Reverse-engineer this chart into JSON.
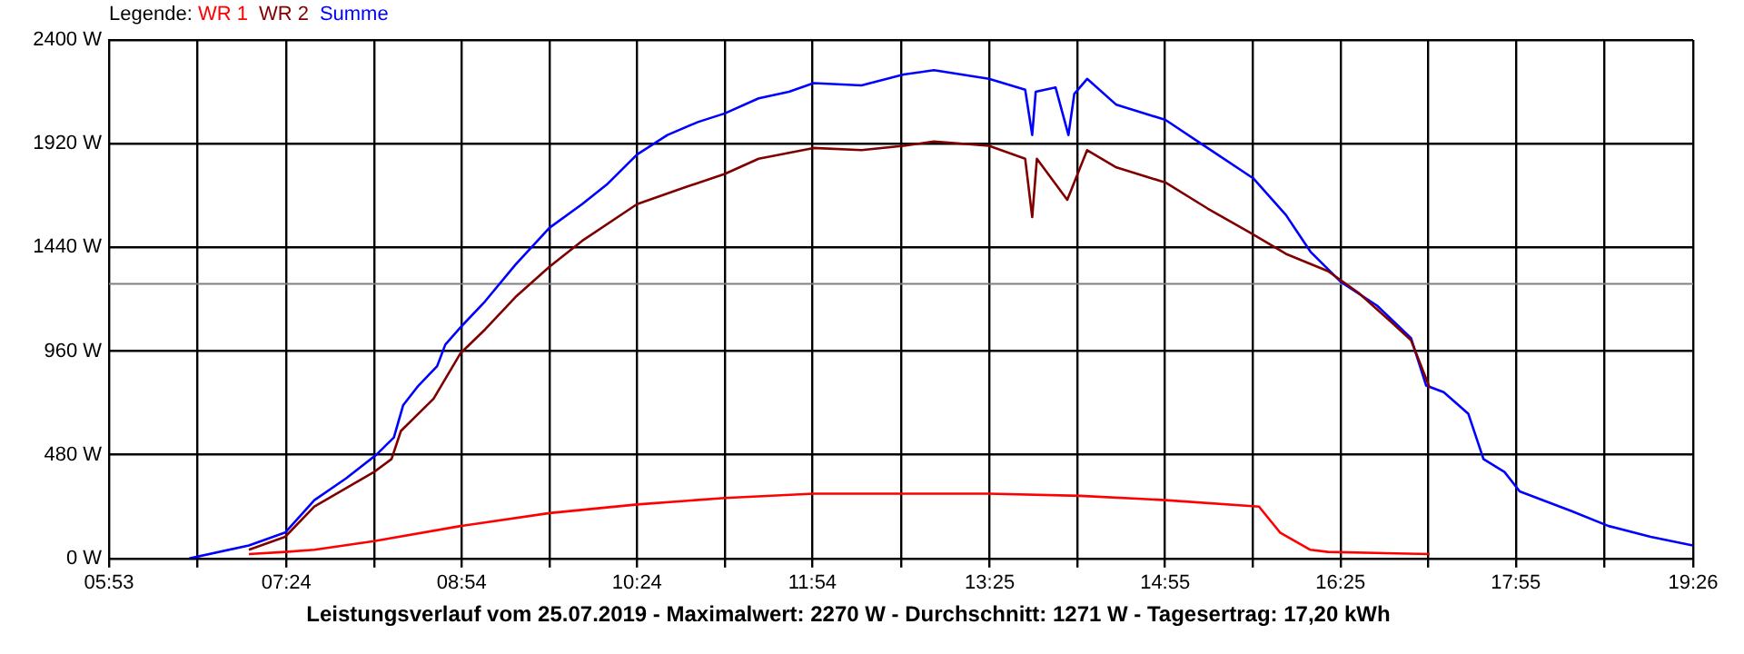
{
  "chart_data": {
    "type": "line",
    "title": "Leistungsverlauf vom 25.07.2019 - Maximalwert: 2270 W - Durchschnitt: 1271 W - Tagesertrag: 17,20 kWh",
    "legend_title": "Legende:",
    "legend": "top left",
    "grid": true,
    "xlim": [
      5.8833,
      19.4333
    ],
    "xticks": [
      {
        "value": 5.8833,
        "label": "05:53"
      },
      {
        "value": 6.6417,
        "label": null
      },
      {
        "value": 7.4,
        "label": "07:24"
      },
      {
        "value": 8.15,
        "label": null
      },
      {
        "value": 8.9,
        "label": "08:54"
      },
      {
        "value": 9.65,
        "label": null
      },
      {
        "value": 10.4,
        "label": "10:24"
      },
      {
        "value": 11.15,
        "label": null
      },
      {
        "value": 11.9,
        "label": "11:54"
      },
      {
        "value": 12.6583,
        "label": null
      },
      {
        "value": 13.4167,
        "label": "13:25"
      },
      {
        "value": 14.1667,
        "label": null
      },
      {
        "value": 14.9167,
        "label": "14:55"
      },
      {
        "value": 15.6667,
        "label": null
      },
      {
        "value": 16.4167,
        "label": "16:25"
      },
      {
        "value": 17.1667,
        "label": null
      },
      {
        "value": 17.9167,
        "label": "17:55"
      },
      {
        "value": 18.675,
        "label": null
      },
      {
        "value": 19.4333,
        "label": "19:26"
      }
    ],
    "ylim": [
      0,
      2400
    ],
    "yticks": [
      {
        "value": 0,
        "label": "0 W"
      },
      {
        "value": 480,
        "label": "480 W"
      },
      {
        "value": 960,
        "label": "960 W"
      },
      {
        "value": 1440,
        "label": "1440 W"
      },
      {
        "value": 1920,
        "label": "1920 W"
      },
      {
        "value": 2400,
        "label": "2400 W"
      }
    ],
    "ref_lines": [
      {
        "axis": "y",
        "value": 1271,
        "color": "#808080"
      }
    ],
    "series": [
      {
        "name": "WR 1",
        "color": "#ff0000",
        "x": [
          7.08,
          7.39,
          7.64,
          8.15,
          8.89,
          9.65,
          10.4,
          11.15,
          11.91,
          12.68,
          13.41,
          14.19,
          14.92,
          15.72,
          15.9,
          16.16,
          16.31,
          17.18
        ],
        "values": [
          20,
          30,
          40,
          80,
          150,
          210,
          250,
          280,
          300,
          300,
          300,
          290,
          270,
          240,
          120,
          40,
          30,
          20
        ]
      },
      {
        "name": "WR 2",
        "color": "#800000",
        "x": [
          7.08,
          7.39,
          7.64,
          8.15,
          8.3,
          8.38,
          8.66,
          8.89,
          9.1,
          9.36,
          9.65,
          9.93,
          10.4,
          10.82,
          11.15,
          11.44,
          11.91,
          12.32,
          12.68,
          12.94,
          13.41,
          13.72,
          13.78,
          13.82,
          14.08,
          14.25,
          14.5,
          14.92,
          15.28,
          15.67,
          15.95,
          16.31,
          16.57,
          16.84,
          17.02,
          17.18
        ],
        "values": [
          40,
          100,
          240,
          400,
          460,
          590,
          740,
          950,
          1060,
          1210,
          1350,
          1470,
          1640,
          1720,
          1780,
          1850,
          1900,
          1890,
          1910,
          1930,
          1910,
          1850,
          1580,
          1850,
          1660,
          1890,
          1810,
          1740,
          1620,
          1500,
          1410,
          1330,
          1230,
          1100,
          1010,
          790
        ]
      },
      {
        "name": "Summe",
        "color": "#0000ff",
        "x": [
          6.57,
          7.08,
          7.39,
          7.64,
          7.91,
          8.17,
          8.32,
          8.4,
          8.53,
          8.69,
          8.76,
          8.89,
          9.1,
          9.36,
          9.65,
          9.93,
          10.14,
          10.4,
          10.66,
          10.92,
          11.15,
          11.44,
          11.7,
          11.91,
          12.32,
          12.68,
          12.94,
          13.41,
          13.72,
          13.78,
          13.81,
          13.98,
          14.09,
          14.14,
          14.25,
          14.5,
          14.92,
          15.28,
          15.67,
          15.95,
          16.16,
          16.42,
          16.73,
          17.02,
          17.15,
          17.3,
          17.51,
          17.64,
          17.82,
          17.95,
          18.39,
          18.71,
          19.07,
          19.43
        ],
        "values": [
          0,
          60,
          120,
          270,
          370,
          480,
          560,
          710,
          800,
          890,
          990,
          1070,
          1190,
          1360,
          1530,
          1640,
          1730,
          1870,
          1960,
          2020,
          2060,
          2130,
          2160,
          2200,
          2190,
          2240,
          2260,
          2220,
          2170,
          1960,
          2160,
          2180,
          1960,
          2150,
          2220,
          2100,
          2030,
          1900,
          1760,
          1590,
          1420,
          1280,
          1170,
          1020,
          800,
          770,
          670,
          460,
          400,
          310,
          220,
          150,
          100,
          60
        ]
      }
    ]
  }
}
